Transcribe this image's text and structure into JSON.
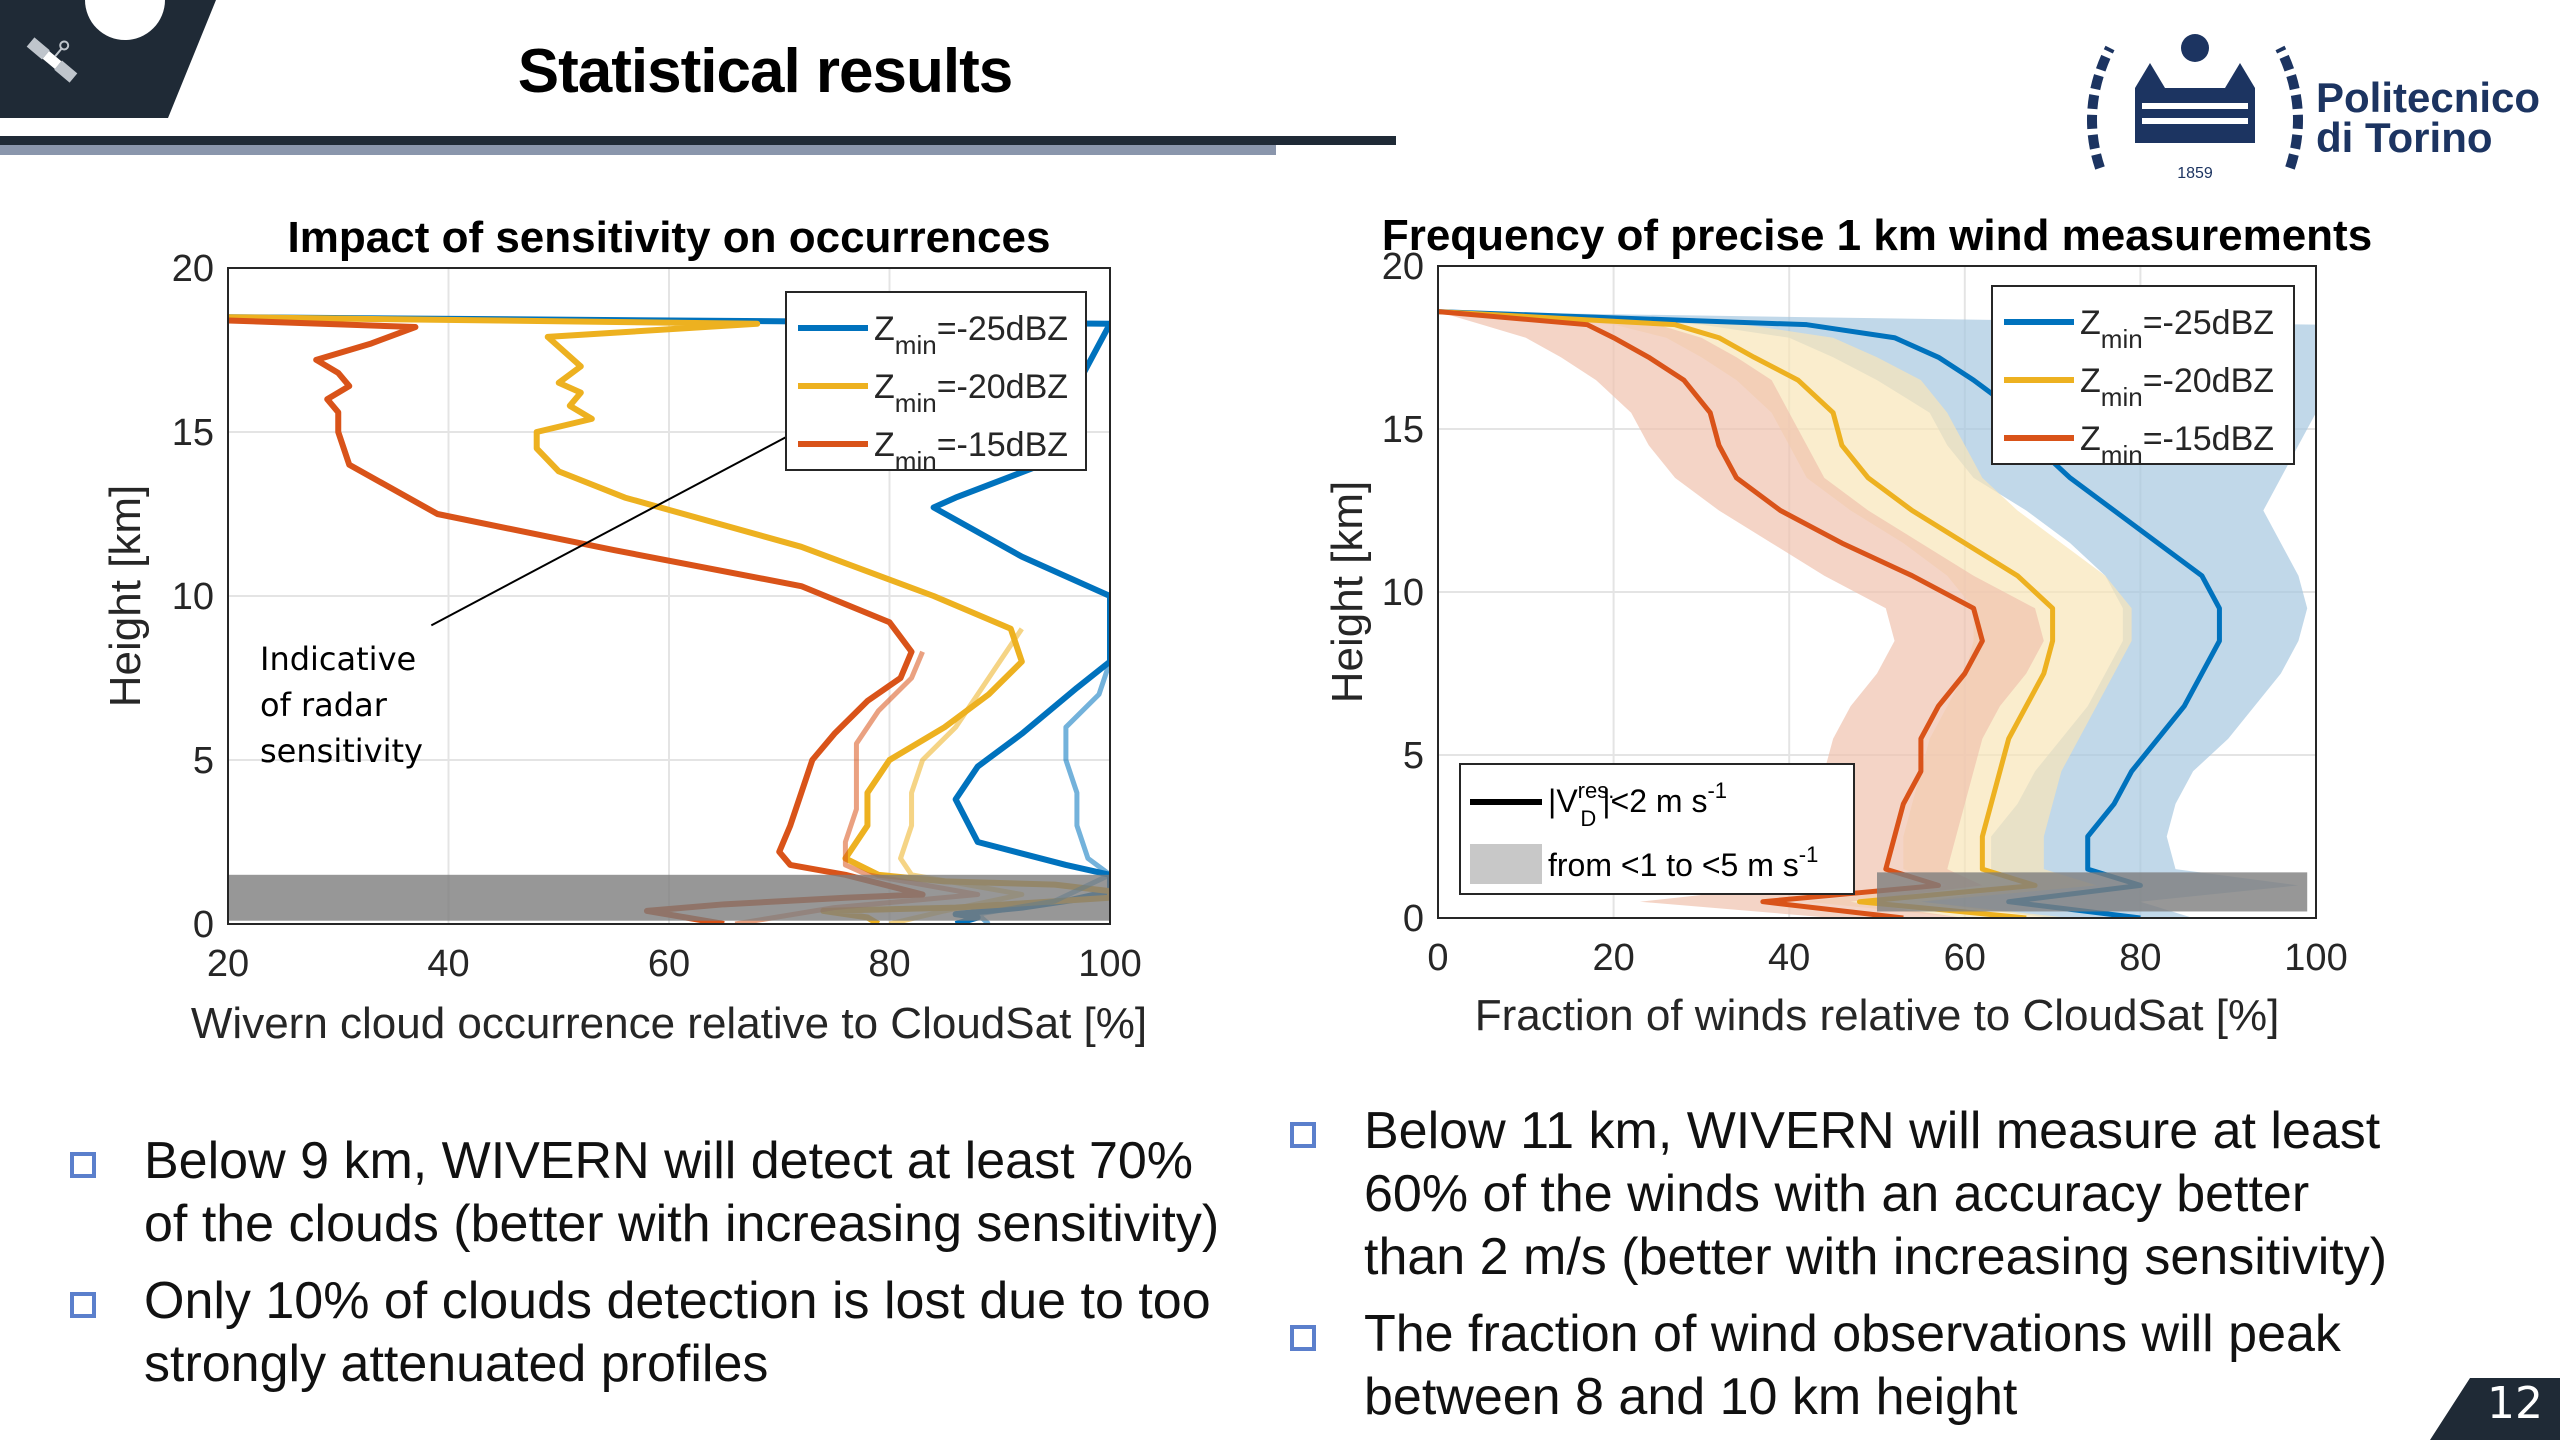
{
  "slide": {
    "title": "Statistical results",
    "page_number": "12",
    "logo": {
      "line1": "Politecnico",
      "line2": "di Torino",
      "year": "1859"
    },
    "icons": {
      "corner": "satellite-icon"
    }
  },
  "bullets_left": [
    {
      "line1": "Below 9 km, WIVERN will detect at least 70%",
      "line2": "of the clouds (better with increasing sensitivity)"
    },
    {
      "line1": "Only 10% of clouds detection is lost due to too",
      "line2": "strongly attenuated profiles"
    }
  ],
  "bullets_right": [
    {
      "line1": "Below 11 km, WIVERN will measure at least",
      "line2": "60% of the winds with an accuracy better",
      "line3": "than 2 m/s (better with increasing sensitivity)"
    },
    {
      "line1": "The fraction of wind observations will peak",
      "line2": "between 8 and 10 km height"
    }
  ],
  "colors": {
    "blue": "#0072bd",
    "yellow": "#edb120",
    "red": "#d95319",
    "gray_band": "#8c8c8c",
    "dark": "#1f2a36",
    "bullet_box": "#5b7fcc"
  },
  "chart_data": [
    {
      "type": "line",
      "title": "Impact of sensitivity on occurrences",
      "xlabel": "Wivern cloud occurrence relative to CloudSat [%]",
      "ylabel": "Height [km]",
      "xlim": [
        20,
        100
      ],
      "ylim": [
        0,
        20
      ],
      "xticks": [
        "20",
        "40",
        "60",
        "80",
        "100"
      ],
      "yticks": [
        "0",
        "5",
        "10",
        "15",
        "20"
      ],
      "grid": true,
      "legend": {
        "placement": "top-right",
        "entries": [
          {
            "base": "Z",
            "sub": "min",
            "rest": "=-25dBZ",
            "color": "#0072bd"
          },
          {
            "base": "Z",
            "sub": "min",
            "rest": "=-20dBZ",
            "color": "#edb120"
          },
          {
            "base": "Z",
            "sub": "min",
            "rest": "=-15dBZ",
            "color": "#d95319"
          }
        ]
      },
      "annotation": {
        "lines": [
          "Indicative",
          "of radar",
          "sensitivity"
        ],
        "arrow_to": [
          95,
          17.9
        ],
        "arrow_from": [
          33,
          8.8
        ]
      },
      "shaded_band": {
        "y_from": 0.1,
        "y_to": 1.5,
        "x_from": 20,
        "x_to": 100
      },
      "series": [
        {
          "name": "Zmin=-25dBZ",
          "color": "#0072bd",
          "x": [
            20,
            100,
            100,
            93,
            86,
            84,
            92,
            100,
            100,
            97,
            92,
            88,
            86,
            88,
            96,
            100,
            100,
            96,
            100,
            92,
            86,
            88,
            86
          ],
          "y": [
            18.5,
            18.3,
            18.3,
            13.9,
            13.0,
            12.7,
            11.2,
            10.0,
            8.0,
            7.2,
            5.8,
            4.8,
            3.8,
            2.5,
            1.8,
            1.5,
            1.0,
            0.7,
            0.9,
            0.5,
            0.3,
            0.2,
            0.0
          ]
        },
        {
          "name": "Zmin=-20dBZ",
          "color": "#edb120",
          "x": [
            20,
            68,
            49,
            52,
            50,
            52,
            51,
            53,
            48,
            48,
            50,
            56,
            72,
            84,
            91,
            92,
            89,
            85,
            80,
            78,
            78,
            76,
            79,
            85,
            95,
            100,
            100,
            86,
            74,
            78,
            79
          ],
          "y": [
            18.5,
            18.3,
            17.9,
            17.0,
            16.5,
            16.2,
            15.8,
            15.4,
            15.0,
            14.5,
            13.8,
            13.0,
            11.5,
            10.0,
            9.0,
            8.0,
            7.0,
            6.0,
            5.0,
            4.0,
            3.0,
            2.0,
            1.5,
            1.3,
            1.2,
            1.0,
            0.8,
            0.5,
            0.4,
            0.2,
            0.0
          ]
        },
        {
          "name": "Zmin=-15dBZ",
          "color": "#d95319",
          "x": [
            20,
            37,
            33,
            28,
            30,
            31,
            29,
            30,
            30,
            31,
            39,
            55,
            72,
            80,
            82,
            81,
            78,
            75,
            73,
            72,
            71,
            70,
            71,
            76,
            83,
            76,
            65,
            58,
            65
          ],
          "y": [
            18.4,
            18.2,
            17.7,
            17.2,
            16.8,
            16.4,
            16.0,
            15.6,
            15.0,
            14.0,
            12.5,
            11.4,
            10.3,
            9.2,
            8.3,
            7.5,
            6.8,
            5.8,
            5.0,
            4.0,
            3.0,
            2.2,
            1.8,
            1.5,
            0.9,
            0.8,
            0.6,
            0.4,
            0.0
          ]
        },
        {
          "name": "Zmin=-25dBZ (attenuated)",
          "color": "#0072bd",
          "faded": true,
          "x": [
            100,
            99,
            96,
            96,
            97,
            97,
            98,
            100,
            95,
            88,
            89
          ],
          "y": [
            8.0,
            7.0,
            6.0,
            5.0,
            4.0,
            3.0,
            2.0,
            1.5,
            0.7,
            0.3,
            0.0
          ]
        },
        {
          "name": "Zmin=-20dBZ (attenuated)",
          "color": "#edb120",
          "faded": true,
          "x": [
            92,
            89,
            86,
            83,
            82,
            82,
            81,
            82,
            92,
            85,
            80
          ],
          "y": [
            9.0,
            7.5,
            6.0,
            5.0,
            4.0,
            3.0,
            2.0,
            1.5,
            0.9,
            0.4,
            0.0
          ]
        },
        {
          "name": "Zmin=-15dBZ (attenuated)",
          "color": "#d95319",
          "faded": true,
          "x": [
            83,
            82,
            79,
            77,
            77,
            77,
            76,
            76,
            78,
            88,
            75,
            66
          ],
          "y": [
            8.3,
            7.5,
            6.5,
            5.5,
            4.5,
            3.5,
            2.5,
            1.8,
            1.5,
            0.9,
            0.5,
            0.0
          ]
        }
      ]
    },
    {
      "type": "area",
      "title": "Frequency of precise 1 km wind measurements",
      "xlabel": "Fraction of winds relative to CloudSat [%]",
      "ylabel": "Height [km]",
      "xlim": [
        0,
        100
      ],
      "ylim": [
        0,
        20
      ],
      "xticks": [
        "0",
        "20",
        "40",
        "60",
        "80",
        "100"
      ],
      "yticks": [
        "0",
        "5",
        "10",
        "15",
        "20"
      ],
      "grid": true,
      "legend": {
        "placement": "top-right",
        "entries": [
          {
            "base": "Z",
            "sub": "min",
            "rest": "=-25dBZ",
            "color": "#0072bd"
          },
          {
            "base": "Z",
            "sub": "min",
            "rest": "=-20dBZ",
            "color": "#edb120"
          },
          {
            "base": "Z",
            "sub": "min",
            "rest": "=-15dBZ",
            "color": "#d95319"
          }
        ]
      },
      "legend2": {
        "placement": "bottom-left",
        "entries": [
          {
            "kind": "line",
            "pre": "|V",
            "sup": "res.",
            "sub": "D",
            "post": "|<2 m s",
            "exp": "-1"
          },
          {
            "kind": "patch",
            "pre": "from <1 to <5 m s",
            "exp": "-1"
          }
        ]
      },
      "shaded_band": {
        "y_from": 0.2,
        "y_to": 1.4,
        "x_from": 50,
        "x_to": 99
      },
      "y": [
        18.6,
        18.2,
        17.8,
        17.2,
        16.5,
        15.5,
        14.5,
        13.5,
        12.5,
        11.5,
        10.5,
        9.5,
        8.5,
        7.5,
        6.5,
        5.5,
        4.5,
        3.5,
        2.5,
        1.5,
        1.0,
        0.5,
        0.0
      ],
      "series": [
        {
          "name": "Zmin=-25dBZ",
          "color": "#0072bd",
          "mid": [
            0,
            42,
            52,
            57,
            61,
            66,
            68,
            72,
            77,
            82,
            87,
            89,
            89,
            87,
            85,
            82,
            79,
            77,
            74,
            74,
            80,
            65,
            80
          ],
          "lo": [
            0,
            30,
            40,
            45,
            50,
            56,
            58,
            61,
            67,
            72,
            76,
            78,
            78,
            76,
            74,
            71,
            68,
            66,
            63,
            63,
            68,
            55,
            70
          ],
          "hi": [
            0,
            100,
            100,
            100,
            100,
            100,
            98,
            96,
            94,
            96,
            98,
            99,
            98,
            96,
            93,
            90,
            86,
            84,
            83,
            84,
            98,
            80,
            86
          ]
        },
        {
          "name": "Zmin=-20dBZ",
          "color": "#edb120",
          "mid": [
            0,
            27,
            32,
            36,
            41,
            45,
            46,
            49,
            54,
            60,
            66,
            70,
            70,
            69,
            67,
            65,
            64,
            63,
            62,
            62,
            68,
            48,
            67
          ],
          "lo": [
            0,
            20,
            26,
            30,
            34,
            38,
            40,
            42,
            47,
            53,
            58,
            61,
            61,
            60,
            58,
            56,
            55,
            54,
            53,
            53,
            58,
            42,
            60
          ],
          "hi": [
            0,
            35,
            45,
            50,
            55,
            58,
            60,
            62,
            66,
            71,
            76,
            79,
            79,
            77,
            75,
            73,
            71,
            70,
            69,
            69,
            75,
            55,
            72
          ]
        },
        {
          "name": "Zmin=-15dBZ",
          "color": "#d95319",
          "mid": [
            0,
            17,
            20,
            24,
            28,
            31,
            32,
            34,
            39,
            46,
            54,
            61,
            62,
            60,
            57,
            55,
            55,
            53,
            52,
            51,
            57,
            37,
            53
          ],
          "lo": [
            0,
            5,
            10,
            14,
            18,
            22,
            24,
            27,
            32,
            38,
            44,
            51,
            52,
            50,
            47,
            45,
            44,
            42,
            40,
            36,
            40,
            23,
            45
          ],
          "hi": [
            0,
            25,
            30,
            34,
            38,
            40,
            42,
            44,
            49,
            55,
            61,
            68,
            69,
            67,
            64,
            62,
            61,
            60,
            59,
            58,
            62,
            47,
            60
          ]
        }
      ]
    }
  ]
}
